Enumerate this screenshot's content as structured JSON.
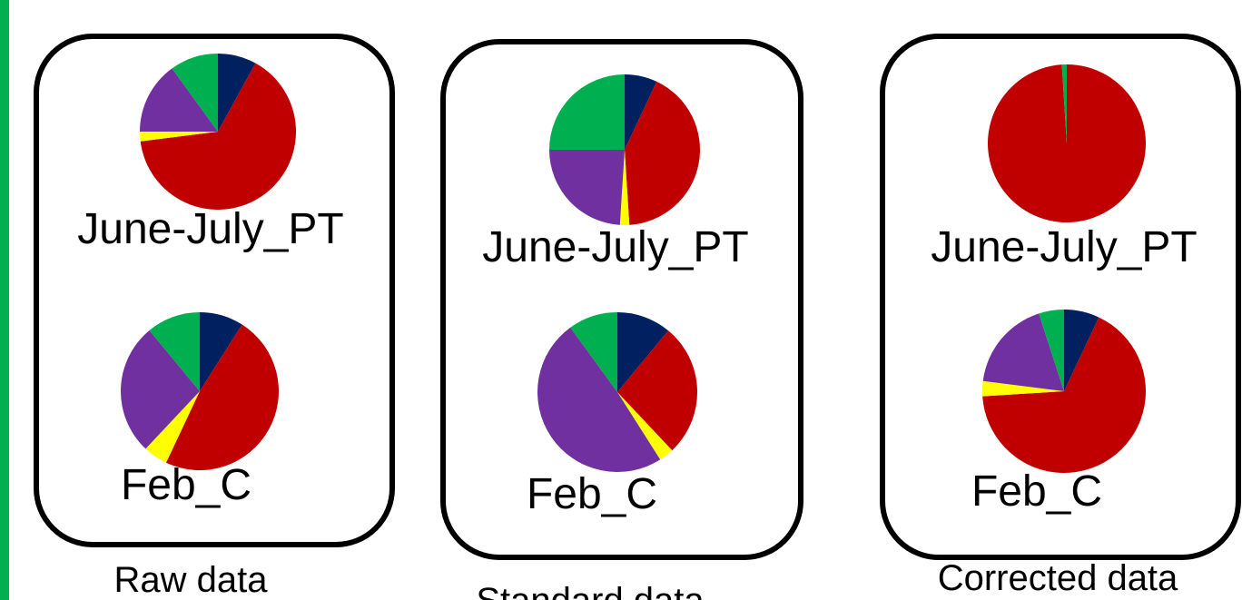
{
  "chart_data": [
    {
      "type": "pie",
      "title": "June-July_PT",
      "values": [
        8,
        65,
        2,
        15,
        10
      ],
      "colors": [
        "#002060",
        "#c00000",
        "#ffff00",
        "#7030a0",
        "#00b050"
      ]
    },
    {
      "type": "pie",
      "title": "Feb_C",
      "values": [
        9,
        48,
        5,
        27,
        11
      ],
      "colors": [
        "#002060",
        "#c00000",
        "#ffff00",
        "#7030a0",
        "#00b050"
      ]
    },
    {
      "type": "pie",
      "title": "June-July_PT",
      "values": [
        7,
        42,
        2,
        24,
        25
      ],
      "colors": [
        "#002060",
        "#c00000",
        "#ffff00",
        "#7030a0",
        "#00b050"
      ]
    },
    {
      "type": "pie",
      "title": "Feb_C",
      "values": [
        11,
        27,
        3,
        49,
        10
      ],
      "colors": [
        "#002060",
        "#c00000",
        "#ffff00",
        "#7030a0",
        "#00b050"
      ]
    },
    {
      "type": "pie",
      "title": "June-July_PT",
      "values": [
        0,
        99,
        0,
        0,
        1
      ],
      "colors": [
        "#002060",
        "#c00000",
        "#ffff00",
        "#7030a0",
        "#00b050"
      ]
    },
    {
      "type": "pie",
      "title": "Feb_C",
      "values": [
        7,
        67,
        3,
        18,
        5
      ],
      "colors": [
        "#002060",
        "#c00000",
        "#ffff00",
        "#7030a0",
        "#00b050"
      ]
    }
  ],
  "captions": [
    "Raw data",
    "Standard data",
    "Corrected data"
  ]
}
